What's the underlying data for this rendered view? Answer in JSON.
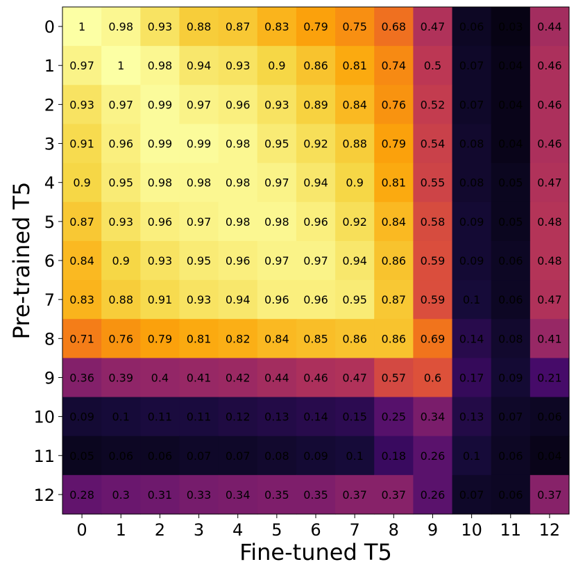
{
  "chart_data": {
    "type": "heatmap",
    "title": "",
    "xlabel": "Fine-tuned T5",
    "ylabel": "Pre-trained T5",
    "x_categories": [
      "0",
      "1",
      "2",
      "3",
      "4",
      "5",
      "6",
      "7",
      "8",
      "9",
      "10",
      "11",
      "12"
    ],
    "y_categories": [
      "0",
      "1",
      "2",
      "3",
      "4",
      "5",
      "6",
      "7",
      "8",
      "9",
      "10",
      "11",
      "12"
    ],
    "colormap": "inferno",
    "value_range": [
      0,
      1
    ],
    "grid": false,
    "values": [
      [
        1.0,
        0.98,
        0.93,
        0.88,
        0.87,
        0.83,
        0.79,
        0.75,
        0.68,
        0.47,
        0.06,
        0.03,
        0.44
      ],
      [
        0.97,
        1.0,
        0.98,
        0.94,
        0.93,
        0.9,
        0.86,
        0.81,
        0.74,
        0.5,
        0.07,
        0.04,
        0.46
      ],
      [
        0.93,
        0.97,
        0.99,
        0.97,
        0.96,
        0.93,
        0.89,
        0.84,
        0.76,
        0.52,
        0.07,
        0.04,
        0.46
      ],
      [
        0.91,
        0.96,
        0.99,
        0.99,
        0.98,
        0.95,
        0.92,
        0.88,
        0.79,
        0.54,
        0.08,
        0.04,
        0.46
      ],
      [
        0.9,
        0.95,
        0.98,
        0.98,
        0.98,
        0.97,
        0.94,
        0.9,
        0.81,
        0.55,
        0.08,
        0.05,
        0.47
      ],
      [
        0.87,
        0.93,
        0.96,
        0.97,
        0.98,
        0.98,
        0.96,
        0.92,
        0.84,
        0.58,
        0.09,
        0.05,
        0.48
      ],
      [
        0.84,
        0.9,
        0.93,
        0.95,
        0.96,
        0.97,
        0.97,
        0.94,
        0.86,
        0.59,
        0.09,
        0.06,
        0.48
      ],
      [
        0.83,
        0.88,
        0.91,
        0.93,
        0.94,
        0.96,
        0.96,
        0.95,
        0.87,
        0.59,
        0.1,
        0.06,
        0.47
      ],
      [
        0.71,
        0.76,
        0.79,
        0.81,
        0.82,
        0.84,
        0.85,
        0.86,
        0.86,
        0.69,
        0.14,
        0.08,
        0.41
      ],
      [
        0.36,
        0.39,
        0.4,
        0.41,
        0.42,
        0.44,
        0.46,
        0.47,
        0.57,
        0.6,
        0.17,
        0.09,
        0.21
      ],
      [
        0.09,
        0.1,
        0.11,
        0.11,
        0.12,
        0.13,
        0.14,
        0.15,
        0.25,
        0.34,
        0.13,
        0.07,
        0.06
      ],
      [
        0.05,
        0.06,
        0.06,
        0.07,
        0.07,
        0.08,
        0.09,
        0.1,
        0.18,
        0.26,
        0.1,
        0.06,
        0.04
      ],
      [
        0.28,
        0.3,
        0.31,
        0.33,
        0.34,
        0.35,
        0.35,
        0.37,
        0.37,
        0.26,
        0.07,
        0.06,
        0.37
      ]
    ]
  }
}
